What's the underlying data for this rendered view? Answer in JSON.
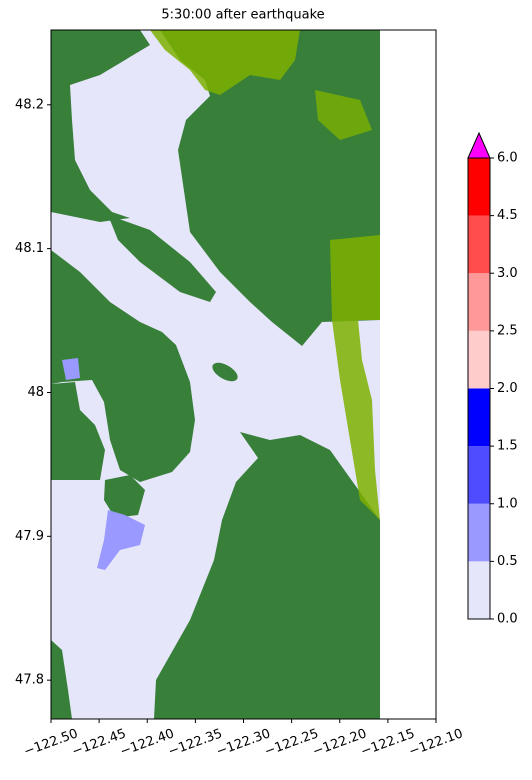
{
  "chart_data": {
    "type": "map",
    "title": "5:30:00 after earthquake",
    "xlim": [
      -122.5,
      -122.1
    ],
    "xticks": [
      {
        "value": -122.5,
        "label": "−122.50"
      },
      {
        "value": -122.45,
        "label": "−122.45"
      },
      {
        "value": -122.4,
        "label": "−122.40"
      },
      {
        "value": -122.35,
        "label": "−122.35"
      },
      {
        "value": -122.3,
        "label": "−122.30"
      },
      {
        "value": -122.25,
        "label": "−122.25"
      },
      {
        "value": -122.2,
        "label": "−122.20"
      },
      {
        "value": -122.15,
        "label": "−122.15"
      },
      {
        "value": -122.1,
        "label": "−122.10"
      }
    ],
    "ylim": [
      47.773,
      48.252
    ],
    "yticks": [
      47.8,
      47.9,
      48.0,
      48.1,
      48.2
    ],
    "colorbar": {
      "ticks": [
        {
          "value": 0,
          "label": "0.0"
        },
        0.5,
        {
          "value": 1,
          "label": "1.0"
        },
        1.5,
        {
          "value": 2,
          "label": "2.0"
        },
        2.5,
        {
          "value": 3,
          "label": "3.0"
        },
        4.5,
        {
          "value": 6,
          "label": "6.0"
        }
      ],
      "colors": [
        "#e6e6fa",
        "#9999ff",
        "#4d4dff",
        "#0000ff",
        "#ffcccc",
        "#ff9999",
        "#ff4d4d",
        "#ff0000"
      ],
      "extend_color": "#ff00ff"
    }
  }
}
